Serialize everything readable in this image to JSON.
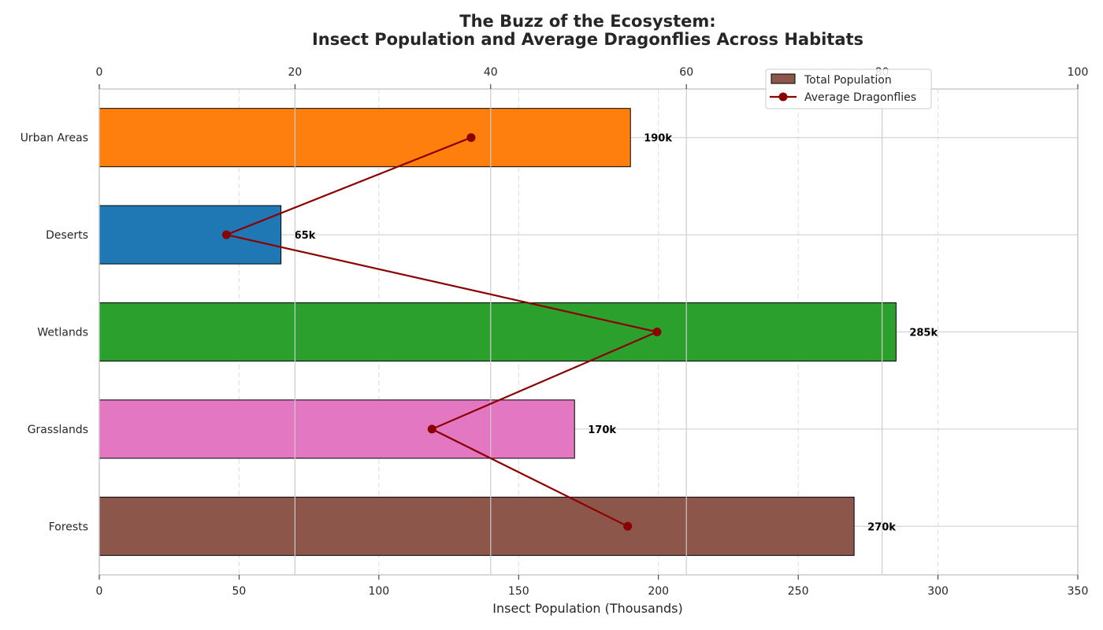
{
  "chart_data": {
    "type": "bar",
    "orientation": "horizontal",
    "title_line1": "The Buzz of the Ecosystem:",
    "title_line2": "Insect Population and Average Dragonflies Across Habitats",
    "xlabel": "Insect Population (Thousands)",
    "ylabel": "",
    "xlim": [
      0,
      350
    ],
    "x_ticks": [
      0,
      50,
      100,
      150,
      200,
      250,
      300,
      350
    ],
    "top_xlim": [
      0,
      100
    ],
    "top_x_ticks": [
      0,
      20,
      40,
      60,
      80,
      100
    ],
    "grid": true,
    "legend_position": "upper-right",
    "categories": [
      "Urban Areas",
      "Deserts",
      "Wetlands",
      "Grasslands",
      "Forests"
    ],
    "series": [
      {
        "name": "Total Population",
        "type": "bar",
        "axis": "bottom",
        "values": [
          190,
          65,
          285,
          170,
          270
        ],
        "labels": [
          "190k",
          "65k",
          "285k",
          "170k",
          "270k"
        ],
        "colors": [
          "#ff7f0e",
          "#1f77b4",
          "#2ca02c",
          "#e377c2",
          "#8c564b"
        ],
        "legend_color": "#8c564b"
      },
      {
        "name": "Average Dragonflies",
        "type": "line",
        "axis": "top",
        "values": [
          38,
          13,
          57,
          34,
          54
        ],
        "color": "#8b0000"
      }
    ]
  }
}
